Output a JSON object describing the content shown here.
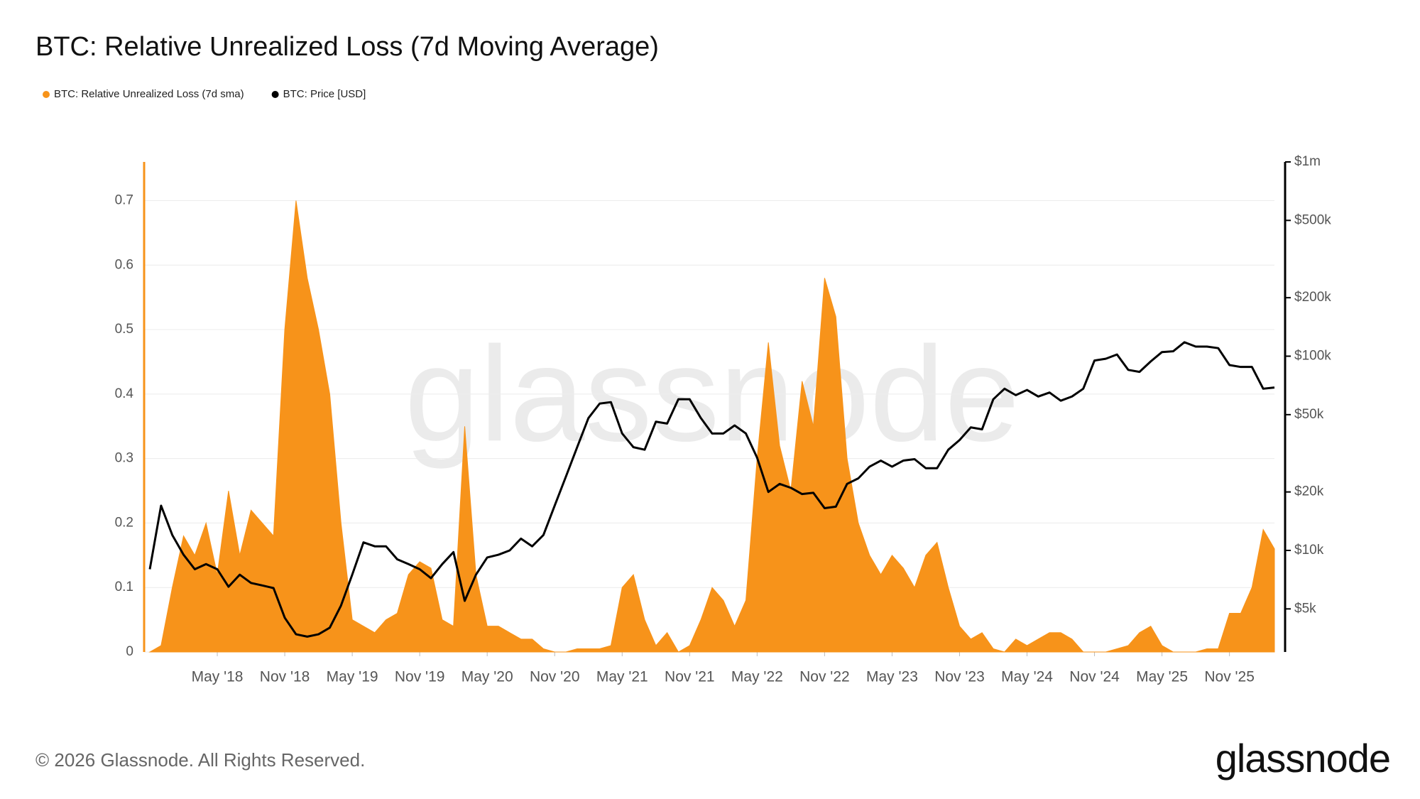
{
  "chart_data": {
    "type": "area-line",
    "title": "BTC: Relative Unrealized Loss (7d Moving Average)",
    "watermark": "glassnode",
    "footer": "© 2026 Glassnode. All Rights Reserved.",
    "logo": "glassnode",
    "legend": "top-left",
    "grid": true,
    "x": [
      "2017-11",
      "2017-12",
      "2018-01",
      "2018-02",
      "2018-03",
      "2018-04",
      "2018-05",
      "2018-06",
      "2018-07",
      "2018-08",
      "2018-09",
      "2018-10",
      "2018-11",
      "2018-12",
      "2019-01",
      "2019-02",
      "2019-03",
      "2019-04",
      "2019-05",
      "2019-06",
      "2019-07",
      "2019-08",
      "2019-09",
      "2019-10",
      "2019-11",
      "2019-12",
      "2020-01",
      "2020-02",
      "2020-03",
      "2020-04",
      "2020-05",
      "2020-06",
      "2020-07",
      "2020-08",
      "2020-09",
      "2020-10",
      "2020-11",
      "2020-12",
      "2021-01",
      "2021-02",
      "2021-03",
      "2021-04",
      "2021-05",
      "2021-06",
      "2021-07",
      "2021-08",
      "2021-09",
      "2021-10",
      "2021-11",
      "2021-12",
      "2022-01",
      "2022-02",
      "2022-03",
      "2022-04",
      "2022-05",
      "2022-06",
      "2022-07",
      "2022-08",
      "2022-09",
      "2022-10",
      "2022-11",
      "2022-12",
      "2023-01",
      "2023-02",
      "2023-03",
      "2023-04",
      "2023-05",
      "2023-06",
      "2023-07",
      "2023-08",
      "2023-09",
      "2023-10",
      "2023-11",
      "2023-12",
      "2024-01",
      "2024-02",
      "2024-03",
      "2024-04",
      "2024-05",
      "2024-06",
      "2024-07",
      "2024-08",
      "2024-09",
      "2024-10",
      "2024-11",
      "2024-12",
      "2025-01",
      "2025-02",
      "2025-03",
      "2025-04",
      "2025-05",
      "2025-06",
      "2025-07",
      "2025-08",
      "2025-09",
      "2025-10",
      "2025-11",
      "2025-12",
      "2026-01",
      "2026-02",
      "2026-03"
    ],
    "xlim": [
      "2017-11",
      "2026-03"
    ],
    "xticks": [
      {
        "value": "2018-05",
        "label": "May '18"
      },
      {
        "value": "2018-11",
        "label": "Nov '18"
      },
      {
        "value": "2019-05",
        "label": "May '19"
      },
      {
        "value": "2019-11",
        "label": "Nov '19"
      },
      {
        "value": "2020-05",
        "label": "May '20"
      },
      {
        "value": "2020-11",
        "label": "Nov '20"
      },
      {
        "value": "2021-05",
        "label": "May '21"
      },
      {
        "value": "2021-11",
        "label": "Nov '21"
      },
      {
        "value": "2022-05",
        "label": "May '22"
      },
      {
        "value": "2022-11",
        "label": "Nov '22"
      },
      {
        "value": "2023-05",
        "label": "May '23"
      },
      {
        "value": "2023-11",
        "label": "Nov '23"
      },
      {
        "value": "2024-05",
        "label": "May '24"
      },
      {
        "value": "2024-11",
        "label": "Nov '24"
      },
      {
        "value": "2025-05",
        "label": "May '25"
      },
      {
        "value": "2025-11",
        "label": "Nov '25"
      }
    ],
    "ylim": [
      0,
      0.76
    ],
    "yticks": [
      0,
      0.1,
      0.2,
      0.3,
      0.4,
      0.5,
      0.6,
      0.7
    ],
    "y2lim": [
      3000,
      1000000
    ],
    "y2log": true,
    "y2ticks": [
      {
        "value": 5000,
        "label": "$5k"
      },
      {
        "value": 10000,
        "label": "$10k"
      },
      {
        "value": 20000,
        "label": "$20k"
      },
      {
        "value": 50000,
        "label": "$50k"
      },
      {
        "value": 100000,
        "label": "$100k"
      },
      {
        "value": 200000,
        "label": "$200k"
      },
      {
        "value": 500000,
        "label": "$500k"
      },
      {
        "value": 1000000,
        "label": "$1m"
      }
    ],
    "series": [
      {
        "name": "BTC: Relative Unrealized Loss (7d sma)",
        "color": "#f7931a",
        "kind": "area",
        "values": [
          0.0,
          0.01,
          0.1,
          0.18,
          0.15,
          0.2,
          0.12,
          0.25,
          0.15,
          0.22,
          0.2,
          0.18,
          0.5,
          0.7,
          0.58,
          0.5,
          0.4,
          0.2,
          0.05,
          0.04,
          0.03,
          0.05,
          0.06,
          0.12,
          0.14,
          0.13,
          0.05,
          0.04,
          0.35,
          0.12,
          0.04,
          0.04,
          0.03,
          0.02,
          0.02,
          0.005,
          0,
          0,
          0.005,
          0.005,
          0.005,
          0.01,
          0.1,
          0.12,
          0.05,
          0.01,
          0.03,
          0,
          0.01,
          0.05,
          0.1,
          0.08,
          0.04,
          0.08,
          0.3,
          0.48,
          0.32,
          0.25,
          0.42,
          0.35,
          0.58,
          0.52,
          0.3,
          0.2,
          0.15,
          0.12,
          0.15,
          0.13,
          0.1,
          0.15,
          0.17,
          0.1,
          0.04,
          0.02,
          0.03,
          0.005,
          0,
          0.02,
          0.01,
          0.02,
          0.03,
          0.03,
          0.02,
          0,
          0,
          0,
          0.005,
          0.01,
          0.03,
          0.04,
          0.01,
          0,
          0,
          0,
          0.005,
          0.005,
          0.06,
          0.06,
          0.1,
          0.19,
          0.16
        ]
      },
      {
        "name": "BTC: Price [USD]",
        "color": "#000000",
        "kind": "line",
        "axis": "y2",
        "values": [
          8000,
          17000,
          12000,
          9500,
          8000,
          8500,
          8000,
          6500,
          7500,
          6800,
          6600,
          6400,
          4500,
          3700,
          3600,
          3700,
          4000,
          5200,
          7500,
          11000,
          10500,
          10500,
          9000,
          8500,
          8000,
          7200,
          8500,
          9800,
          5500,
          7500,
          9200,
          9500,
          10000,
          11500,
          10500,
          12000,
          17000,
          24000,
          34000,
          48000,
          57000,
          58000,
          40000,
          34000,
          33000,
          46000,
          45000,
          60000,
          60000,
          48000,
          40000,
          40000,
          44000,
          40000,
          30000,
          20000,
          22000,
          21000,
          19500,
          19800,
          16500,
          16800,
          22000,
          23500,
          27000,
          29000,
          27000,
          29000,
          29500,
          26500,
          26500,
          33000,
          37000,
          43000,
          42000,
          60000,
          68000,
          63000,
          67000,
          62000,
          65000,
          59000,
          62000,
          68000,
          95000,
          97000,
          102000,
          85000,
          83000,
          94000,
          105000,
          106000,
          118000,
          112000,
          112000,
          110000,
          90000,
          88000,
          88000,
          68000,
          69000
        ]
      }
    ]
  }
}
